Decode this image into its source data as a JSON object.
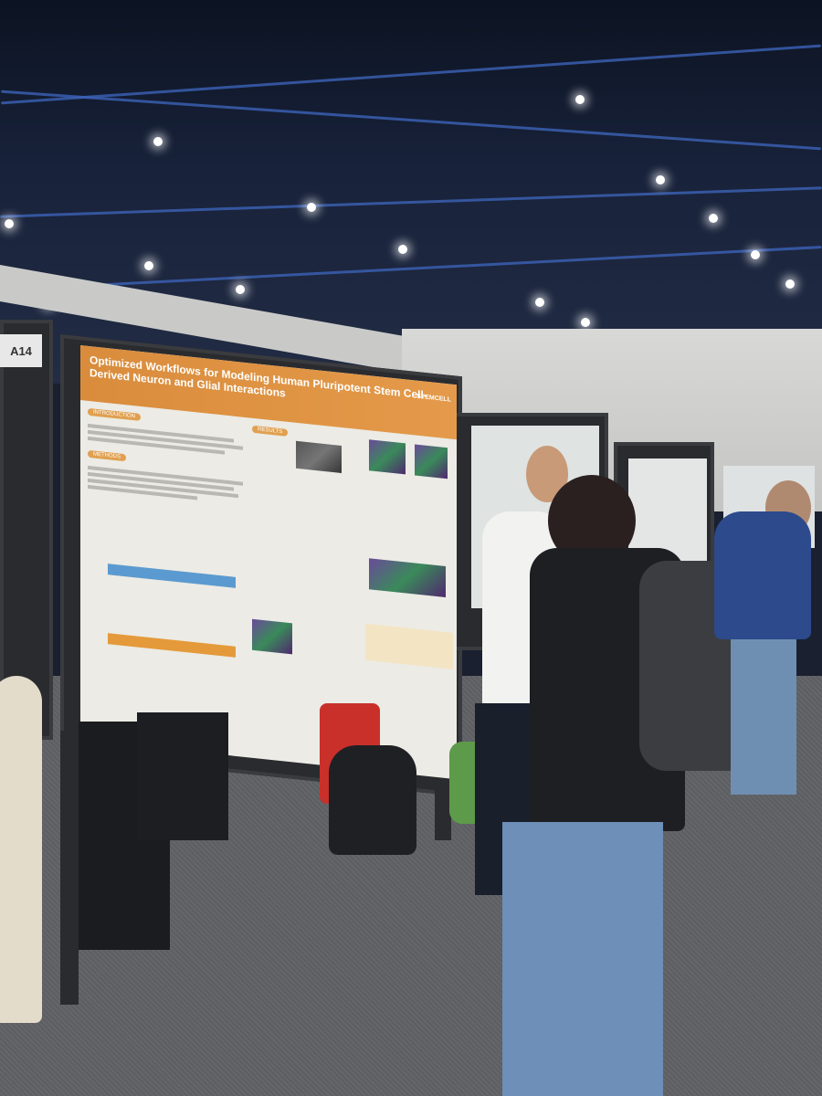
{
  "booth_sign": "A14",
  "poster": {
    "title": "Optimized Workflows for Modeling Human Pluripotent Stem Cell-Derived Neuron and Glial Interactions",
    "sections": [
      "INTRODUCTION",
      "METHODS",
      "RESULTS"
    ],
    "logo": "STEMCELL"
  }
}
